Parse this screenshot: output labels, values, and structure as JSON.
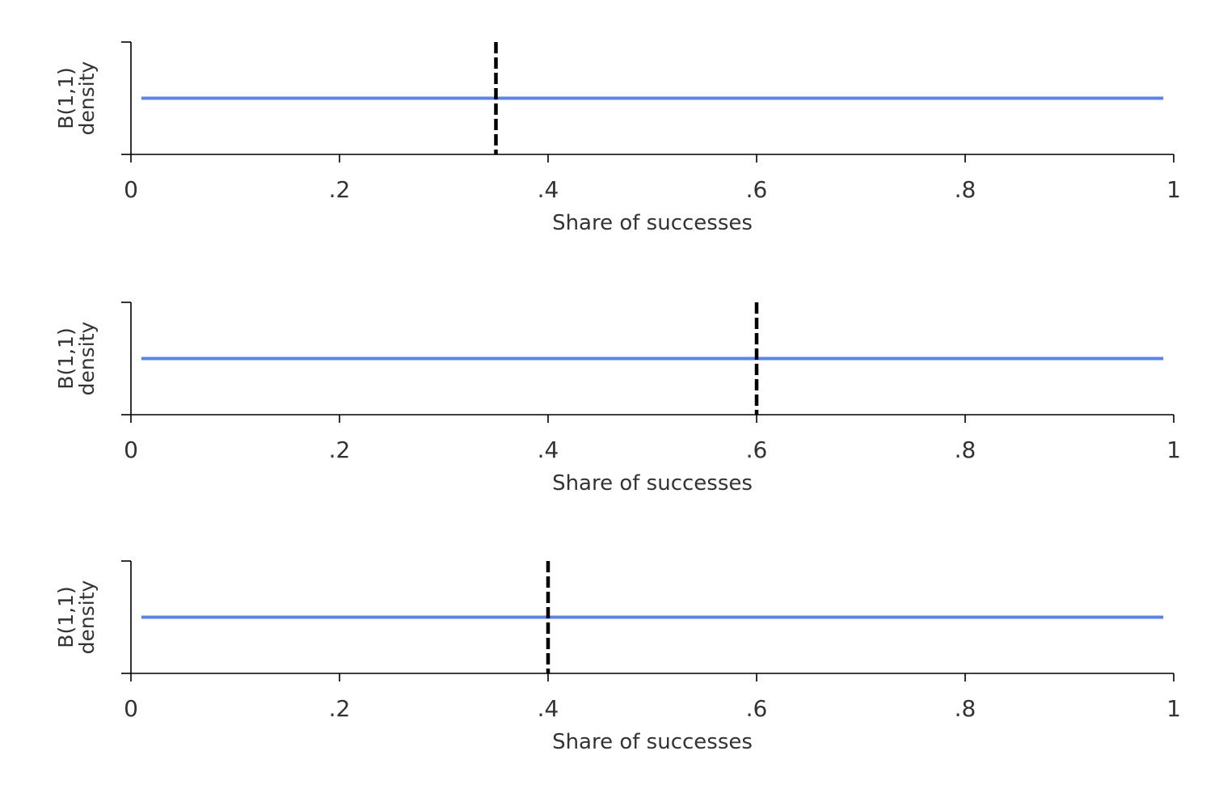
{
  "chart_data": [
    {
      "type": "line",
      "xlabel": "Share of successes",
      "ylabel_lines": [
        "B(1,1)",
        "density"
      ],
      "xlim": [
        0,
        1
      ],
      "ylim": [
        0,
        2
      ],
      "x_ticks": [
        0,
        0.2,
        0.4,
        0.6,
        0.8,
        1
      ],
      "x_tick_labels": [
        "0",
        ".2",
        ".4",
        ".6",
        ".8",
        "1"
      ],
      "series": [
        {
          "x": [
            0.01,
            0.99
          ],
          "values": [
            1,
            1
          ],
          "color": "#5b84e4"
        }
      ],
      "reference_line": {
        "x": 0.35,
        "style": "dashed",
        "color": "#000000"
      },
      "grid": false
    },
    {
      "type": "line",
      "xlabel": "Share of successes",
      "ylabel_lines": [
        "B(1,1)",
        "density"
      ],
      "xlim": [
        0,
        1
      ],
      "ylim": [
        0,
        2
      ],
      "x_ticks": [
        0,
        0.2,
        0.4,
        0.6,
        0.8,
        1
      ],
      "x_tick_labels": [
        "0",
        ".2",
        ".4",
        ".6",
        ".8",
        "1"
      ],
      "series": [
        {
          "x": [
            0.01,
            0.99
          ],
          "values": [
            1,
            1
          ],
          "color": "#5b84e4"
        }
      ],
      "reference_line": {
        "x": 0.6,
        "style": "dashed",
        "color": "#000000"
      },
      "grid": false
    },
    {
      "type": "line",
      "xlabel": "Share of successes",
      "ylabel_lines": [
        "B(1,1)",
        "density"
      ],
      "xlim": [
        0,
        1
      ],
      "ylim": [
        0,
        2
      ],
      "x_ticks": [
        0,
        0.2,
        0.4,
        0.6,
        0.8,
        1
      ],
      "x_tick_labels": [
        "0",
        ".2",
        ".4",
        ".6",
        ".8",
        "1"
      ],
      "series": [
        {
          "x": [
            0.01,
            0.99
          ],
          "values": [
            1,
            1
          ],
          "color": "#5b84e4"
        }
      ],
      "reference_line": {
        "x": 0.4,
        "style": "dashed",
        "color": "#000000"
      },
      "grid": false
    }
  ]
}
